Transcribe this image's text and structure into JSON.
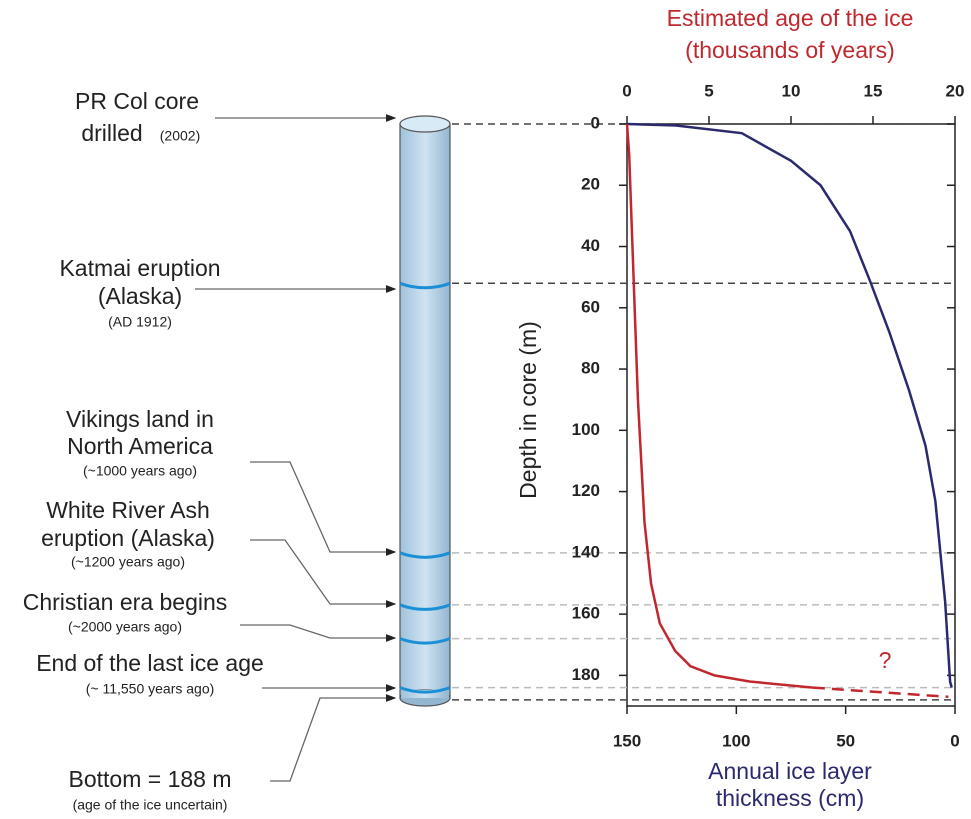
{
  "chart_data": {
    "type": "line",
    "title": "Estimated age of the ice",
    "subtitle": "(thousands of years)",
    "x_title": "Annual ice layer",
    "x_title_2": "thickness (cm)",
    "y_title": "Depth in core (m)",
    "ylim": [
      0,
      190
    ],
    "yticks": [
      0,
      20,
      40,
      60,
      80,
      100,
      120,
      140,
      160,
      180
    ],
    "x2lim": [
      0,
      20
    ],
    "x2ticks": [
      0,
      5,
      10,
      15,
      20
    ],
    "xlim": [
      150,
      0
    ],
    "xticks": [
      150,
      100,
      50,
      0
    ],
    "series": [
      {
        "axis": "x2",
        "color": "#2b2a6e",
        "x": [
          0,
          3,
          7,
          10,
          11.8,
          13.6,
          14.8,
          16,
          17.2,
          18.2,
          18.8,
          19.4,
          19.7,
          19.8
        ],
        "values": [
          0,
          0.5,
          3,
          12,
          20,
          35,
          51,
          68,
          87,
          105,
          123,
          156,
          182,
          184
        ]
      },
      {
        "color": "#c0282d",
        "x": [
          150,
          149,
          148,
          146.5,
          145,
          143.5,
          142,
          139,
          135,
          128,
          121,
          110,
          94,
          65
        ],
        "values": [
          0,
          10,
          30,
          60,
          90,
          110,
          130,
          150,
          163,
          172,
          177,
          180,
          182,
          184
        ]
      },
      {
        "color": "#c0282d",
        "dashed": true,
        "x": [
          65,
          3
        ],
        "values": [
          184,
          187
        ]
      }
    ],
    "annotation": "?",
    "markers": [
      0,
      52,
      140,
      157,
      168,
      184,
      188
    ],
    "marker_colors": [
      "#444444",
      "#444444",
      "#bbbbbb",
      "#bbbbbb",
      "#bbbbbb",
      "#bbbbbb",
      "#444444"
    ]
  },
  "events": [
    {
      "lines": [
        "PR Col core",
        "drilled"
      ],
      "note": "(2002)"
    },
    {
      "lines": [
        "Katmai eruption",
        "(Alaska)"
      ],
      "note": "(AD 1912)"
    },
    {
      "lines": [
        "Vikings land in",
        "North America"
      ],
      "note": "(~1000 years ago)"
    },
    {
      "lines": [
        "White River Ash",
        "eruption (Alaska)"
      ],
      "note": "(~1200 years ago)"
    },
    {
      "lines": [
        "Christian era begins"
      ],
      "note": "(~2000 years ago)"
    },
    {
      "lines": [
        "End of the last ice age"
      ],
      "note": "(~ 11,550 years ago)"
    },
    {
      "lines": [
        "Bottom = 188 m"
      ],
      "note": "(age of the ice uncertain)"
    }
  ]
}
